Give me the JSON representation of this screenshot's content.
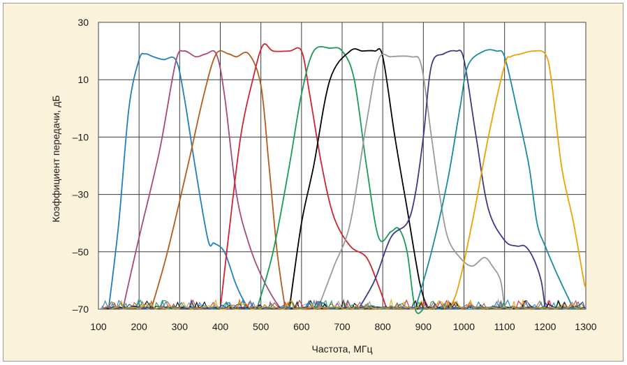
{
  "chart_data": {
    "type": "line",
    "title": "",
    "xlabel": "Частота, МГц",
    "ylabel": "Коэффициент передачи, дБ",
    "xlim": [
      100,
      1300
    ],
    "ylim": [
      -70,
      30
    ],
    "xticks": [
      100,
      200,
      300,
      400,
      500,
      600,
      700,
      800,
      900,
      1000,
      1100,
      1200,
      1300
    ],
    "yticks": [
      30,
      10,
      -10,
      -30,
      -50,
      -70
    ],
    "ytick_labels": [
      "30",
      "10",
      "–10",
      "–30",
      "–50",
      "–70"
    ],
    "xtick_labels": [
      "100",
      "200",
      "300",
      "400",
      "500",
      "600",
      "700",
      "800",
      "900",
      "1000",
      "1100",
      "1200",
      "1300"
    ],
    "grid": true,
    "legend": "none",
    "series": [
      {
        "color": "#1f7fc4",
        "x": [
          125,
          150,
          175,
          200,
          215,
          235,
          260,
          290,
          310,
          340,
          370,
          385,
          410,
          435,
          450,
          470
        ],
        "y": [
          -70,
          -40,
          0,
          17,
          19,
          18,
          17,
          17,
          5,
          -22,
          -46,
          -47,
          -50,
          -60,
          -65,
          -70
        ]
      },
      {
        "color": "#a64a7a",
        "x": [
          160,
          200,
          250,
          290,
          310,
          340,
          365,
          390,
          410,
          440,
          470,
          500,
          530,
          550
        ],
        "y": [
          -70,
          -45,
          -15,
          16,
          20,
          18,
          19,
          19,
          5,
          -30,
          -47,
          -58,
          -66,
          -70
        ]
      },
      {
        "color": "#b85a1a",
        "x": [
          230,
          270,
          320,
          360,
          390,
          420,
          440,
          470,
          500,
          520,
          540,
          560
        ],
        "y": [
          -70,
          -50,
          -20,
          5,
          19,
          19,
          18,
          19,
          8,
          -20,
          -50,
          -70
        ]
      },
      {
        "color": "#d0232d",
        "x": [
          400,
          420,
          450,
          480,
          505,
          530,
          570,
          600,
          620,
          650,
          680,
          720,
          760,
          790,
          810
        ],
        "y": [
          -70,
          -45,
          -10,
          10,
          22,
          20,
          20,
          20,
          5,
          -20,
          -38,
          -48,
          -52,
          -62,
          -70
        ]
      },
      {
        "color": "#1a9a5a",
        "x": [
          490,
          530,
          570,
          600,
          630,
          670,
          700,
          730,
          760,
          790,
          820,
          840,
          860,
          880,
          900
        ],
        "y": [
          -70,
          -50,
          -20,
          5,
          20,
          21,
          20,
          10,
          -20,
          -45,
          -43,
          -42,
          -50,
          -70,
          -70
        ]
      },
      {
        "color": "#000000",
        "x": [
          570,
          600,
          630,
          670,
          720,
          750,
          780,
          800,
          830,
          860,
          890,
          910
        ],
        "y": [
          -70,
          -40,
          -20,
          10,
          20,
          20,
          20,
          18,
          -10,
          -35,
          -60,
          -70
        ]
      },
      {
        "color": "#9a9a9a",
        "x": [
          640,
          680,
          720,
          760,
          790,
          820,
          870,
          895,
          920,
          940,
          960,
          990,
          1020,
          1050,
          1070,
          1090,
          1100
        ],
        "y": [
          -70,
          -55,
          -40,
          -5,
          17,
          18,
          18,
          15,
          -10,
          -30,
          -45,
          -52,
          -55,
          -52,
          -55,
          -60,
          -70
        ]
      },
      {
        "color": "#3a3a8a",
        "x": [
          740,
          780,
          820,
          860,
          880,
          900,
          920,
          950,
          980,
          1000,
          1030,
          1060,
          1100,
          1130,
          1150,
          1170,
          1190,
          1200
        ],
        "y": [
          -70,
          -60,
          -45,
          -40,
          -30,
          -10,
          15,
          19,
          20,
          17,
          -10,
          -35,
          -46,
          -48,
          -48,
          -52,
          -60,
          -70
        ]
      },
      {
        "color": "#1a8aa0",
        "x": [
          880,
          920,
          960,
          990,
          1010,
          1050,
          1080,
          1100,
          1130,
          1160,
          1180,
          1200,
          1230,
          1260,
          1270
        ],
        "y": [
          -70,
          -50,
          -25,
          0,
          15,
          20,
          20,
          18,
          0,
          -20,
          -40,
          -48,
          -58,
          -67,
          -70
        ]
      },
      {
        "color": "#f0a000",
        "x": [
          950,
          980,
          1020,
          1060,
          1100,
          1115,
          1140,
          1170,
          1200,
          1215,
          1240,
          1270,
          1295,
          1300
        ],
        "y": [
          -70,
          -65,
          -40,
          -10,
          15,
          18,
          19,
          20,
          19,
          10,
          -20,
          -40,
          -60,
          -62
        ]
      }
    ]
  }
}
